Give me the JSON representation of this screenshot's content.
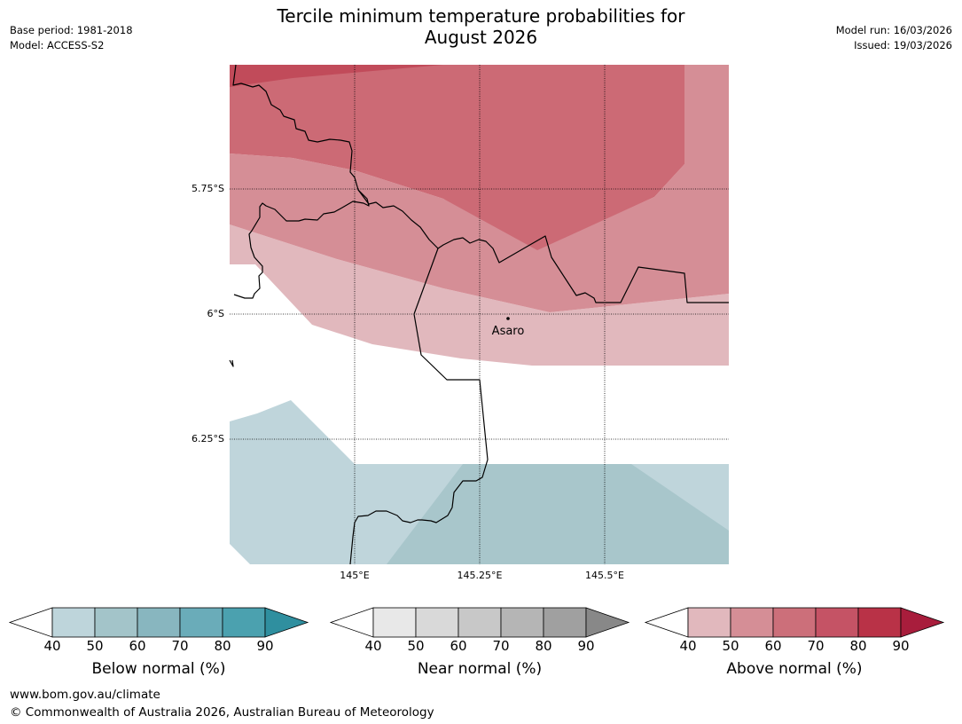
{
  "title_line1": "Tercile minimum temperature probabilities for",
  "title_line2": "August 2026",
  "meta_left": {
    "base_period": "Base period: 1981-2018",
    "model": "Model: ACCESS-S2"
  },
  "meta_right": {
    "model_run": "Model run: 16/03/2026",
    "issued": "Issued: 19/03/2026"
  },
  "lat_labels": [
    "5.75°S",
    "6°S",
    "6.25°S"
  ],
  "lon_labels": [
    "145°E",
    "145.25°E",
    "145.5°E"
  ],
  "place": {
    "name": "Asaro"
  },
  "colorbars": [
    {
      "title": "Below normal (%)",
      "ticks": [
        "40",
        "50",
        "60",
        "70",
        "80",
        "90"
      ],
      "colors": [
        "#bed5db",
        "#a3c4c9",
        "#88b6bf",
        "#6aacb9",
        "#4ba1af",
        "#2f8f9f"
      ]
    },
    {
      "title": "Near normal (%)",
      "ticks": [
        "40",
        "50",
        "60",
        "70",
        "80",
        "90"
      ],
      "colors": [
        "#e8e8e8",
        "#d9d9d9",
        "#c8c8c8",
        "#b5b5b5",
        "#a0a0a0",
        "#888888"
      ]
    },
    {
      "title": "Above normal (%)",
      "ticks": [
        "40",
        "50",
        "60",
        "70",
        "80",
        "90"
      ],
      "colors": [
        "#e1b8bd",
        "#d58e96",
        "#cc6f7a",
        "#c55365",
        "#b93247",
        "#a81d3c"
      ]
    }
  ],
  "footer": {
    "url": "www.bom.gov.au/climate",
    "copyright": "© Commonwealth of Australia 2026, Australian Bureau of Meteorology"
  }
}
